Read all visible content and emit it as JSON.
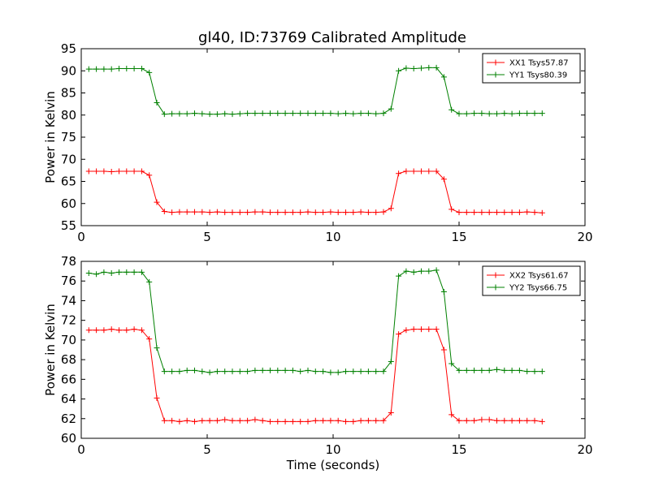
{
  "figure": {
    "title": "gl40, ID:73769 Calibrated Amplitude"
  },
  "chart_data": [
    {
      "type": "line",
      "title": "gl40, ID:73769 Calibrated Amplitude",
      "xlabel": "",
      "ylabel": "Power in Kelvin",
      "xlim": [
        0,
        20
      ],
      "ylim": [
        55,
        95
      ],
      "xticks": [
        "0",
        "5",
        "10",
        "15",
        "20"
      ],
      "yticks": [
        "55",
        "60",
        "65",
        "70",
        "75",
        "80",
        "85",
        "90",
        "95"
      ],
      "grid": false,
      "legend_position": "top-right",
      "x": [
        0.3,
        0.6,
        0.9,
        1.2,
        1.5,
        1.8,
        2.1,
        2.4,
        2.7,
        3.0,
        3.3,
        3.6,
        3.9,
        4.2,
        4.5,
        4.8,
        5.1,
        5.4,
        5.7,
        6.0,
        6.3,
        6.6,
        6.9,
        7.2,
        7.5,
        7.8,
        8.1,
        8.4,
        8.7,
        9.0,
        9.3,
        9.6,
        9.9,
        10.2,
        10.5,
        10.8,
        11.1,
        11.4,
        11.7,
        12.0,
        12.3,
        12.6,
        12.9,
        13.2,
        13.5,
        13.8,
        14.1,
        14.4,
        14.7,
        15.0,
        15.3,
        15.6,
        15.9,
        16.2,
        16.5,
        16.8,
        17.1,
        17.4,
        17.7,
        18.0,
        18.3
      ],
      "series": [
        {
          "name": "XX1 Tsys57.87",
          "color": "#ff0000",
          "values": [
            67.3,
            67.3,
            67.3,
            67.2,
            67.3,
            67.3,
            67.3,
            67.3,
            66.4,
            60.3,
            58.2,
            58.0,
            58.1,
            58.1,
            58.1,
            58.1,
            58.0,
            58.1,
            58.0,
            58.0,
            58.0,
            58.0,
            58.1,
            58.1,
            58.0,
            58.0,
            58.0,
            58.0,
            58.0,
            58.1,
            58.0,
            58.0,
            58.1,
            58.0,
            58.0,
            58.0,
            58.1,
            58.0,
            58.0,
            58.1,
            58.9,
            66.8,
            67.3,
            67.3,
            67.3,
            67.3,
            67.3,
            65.5,
            58.7,
            58.0,
            58.0,
            58.0,
            58.0,
            58.0,
            58.0,
            58.0,
            58.0,
            58.0,
            58.1,
            58.0,
            57.9
          ]
        },
        {
          "name": "YY1 Tsys80.39",
          "color": "#008000",
          "values": [
            90.4,
            90.4,
            90.4,
            90.4,
            90.5,
            90.5,
            90.5,
            90.5,
            89.6,
            82.8,
            80.2,
            80.3,
            80.3,
            80.3,
            80.4,
            80.3,
            80.2,
            80.2,
            80.3,
            80.2,
            80.3,
            80.4,
            80.4,
            80.4,
            80.4,
            80.4,
            80.4,
            80.4,
            80.4,
            80.4,
            80.4,
            80.4,
            80.4,
            80.3,
            80.4,
            80.3,
            80.4,
            80.4,
            80.3,
            80.4,
            81.4,
            90.0,
            90.6,
            90.5,
            90.6,
            90.7,
            90.7,
            88.6,
            81.2,
            80.3,
            80.3,
            80.4,
            80.4,
            80.3,
            80.3,
            80.4,
            80.3,
            80.4,
            80.4,
            80.4,
            80.4
          ]
        }
      ]
    },
    {
      "type": "line",
      "title": "",
      "xlabel": "Time (seconds)",
      "ylabel": "Power in Kelvin",
      "xlim": [
        0,
        20
      ],
      "ylim": [
        60,
        78
      ],
      "xticks": [
        "0",
        "5",
        "10",
        "15",
        "20"
      ],
      "yticks": [
        "60",
        "62",
        "64",
        "66",
        "68",
        "70",
        "72",
        "74",
        "76",
        "78"
      ],
      "grid": false,
      "legend_position": "top-right",
      "x": [
        0.3,
        0.6,
        0.9,
        1.2,
        1.5,
        1.8,
        2.1,
        2.4,
        2.7,
        3.0,
        3.3,
        3.6,
        3.9,
        4.2,
        4.5,
        4.8,
        5.1,
        5.4,
        5.7,
        6.0,
        6.3,
        6.6,
        6.9,
        7.2,
        7.5,
        7.8,
        8.1,
        8.4,
        8.7,
        9.0,
        9.3,
        9.6,
        9.9,
        10.2,
        10.5,
        10.8,
        11.1,
        11.4,
        11.7,
        12.0,
        12.3,
        12.6,
        12.9,
        13.2,
        13.5,
        13.8,
        14.1,
        14.4,
        14.7,
        15.0,
        15.3,
        15.6,
        15.9,
        16.2,
        16.5,
        16.8,
        17.1,
        17.4,
        17.7,
        18.0,
        18.3
      ],
      "series": [
        {
          "name": "XX2 Tsys61.67",
          "color": "#ff0000",
          "values": [
            71.0,
            71.0,
            71.0,
            71.1,
            71.0,
            71.0,
            71.1,
            71.0,
            70.1,
            64.1,
            61.8,
            61.8,
            61.7,
            61.8,
            61.7,
            61.8,
            61.8,
            61.8,
            61.9,
            61.8,
            61.8,
            61.8,
            61.9,
            61.8,
            61.7,
            61.7,
            61.7,
            61.7,
            61.7,
            61.7,
            61.8,
            61.8,
            61.8,
            61.8,
            61.7,
            61.7,
            61.8,
            61.8,
            61.8,
            61.8,
            62.6,
            70.6,
            71.0,
            71.1,
            71.1,
            71.1,
            71.1,
            69.0,
            62.4,
            61.8,
            61.8,
            61.8,
            61.9,
            61.9,
            61.8,
            61.8,
            61.8,
            61.8,
            61.8,
            61.8,
            61.7
          ]
        },
        {
          "name": "YY2 Tsys66.75",
          "color": "#008000",
          "values": [
            76.8,
            76.7,
            76.9,
            76.8,
            76.9,
            76.9,
            76.9,
            76.9,
            75.9,
            69.2,
            66.8,
            66.8,
            66.8,
            66.9,
            66.9,
            66.8,
            66.7,
            66.8,
            66.8,
            66.8,
            66.8,
            66.8,
            66.9,
            66.9,
            66.9,
            66.9,
            66.9,
            66.9,
            66.8,
            66.9,
            66.8,
            66.8,
            66.7,
            66.7,
            66.8,
            66.8,
            66.8,
            66.8,
            66.8,
            66.8,
            67.8,
            76.5,
            77.0,
            76.9,
            77.0,
            77.0,
            77.1,
            74.9,
            67.6,
            66.9,
            66.9,
            66.9,
            66.9,
            66.9,
            67.0,
            66.9,
            66.9,
            66.9,
            66.8,
            66.8,
            66.8
          ]
        }
      ]
    }
  ]
}
